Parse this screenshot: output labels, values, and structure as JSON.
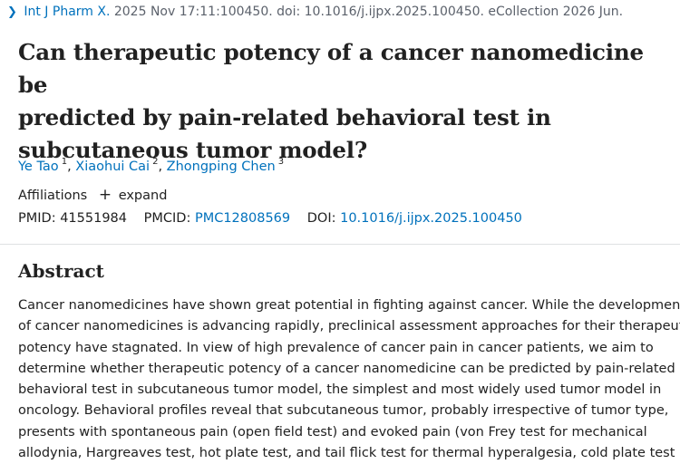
{
  "citation": {
    "journal": "Int J Pharm X.",
    "rest": " 2025 Nov 17:11:100450. doi: 10.1016/j.ijpx.2025.100450. eCollection 2026 Jun."
  },
  "title_lines": [
    "Can therapeutic potency of a cancer nanomedicine be",
    "predicted by pain-related behavioral test in",
    "subcutaneous tumor model?"
  ],
  "authors": [
    {
      "name": "Ye Tao",
      "sup": "1"
    },
    {
      "name": "Xiaohui Cai",
      "sup": "2"
    },
    {
      "name": "Zhongping Chen",
      "sup": "3"
    }
  ],
  "affiliations": {
    "label": "Affiliations",
    "expand": "expand",
    "plus": "+"
  },
  "ids": {
    "pmid_label": "PMID:",
    "pmid": "41551984",
    "pmcid_label": "PMCID:",
    "pmcid": "PMC12808569",
    "doi_label": "DOI:",
    "doi": "10.1016/j.ijpx.2025.100450"
  },
  "abstract": {
    "heading": "Abstract",
    "lines": [
      "Cancer nanomedicines have shown great potential in fighting against cancer. While the development",
      "of cancer nanomedicines is advancing rapidly, preclinical assessment approaches for their therapeutic",
      "potency have stagnated. In view of high prevalence of cancer pain in cancer patients, we aim to",
      "determine whether therapeutic potency of a cancer nanomedicine can be predicted by pain-related",
      "behavioral test in subcutaneous tumor model, the simplest and most widely used tumor model in",
      "oncology. Behavioral profiles reveal that subcutaneous tumor, probably irrespective of tumor type,",
      "presents with spontaneous pain (open field test) and evoked pain (von Frey test for mechanical",
      "allodynia, Hargreaves test, hot plate test, and tail flick test for thermal hyperalgesia, cold plate test"
    ]
  }
}
